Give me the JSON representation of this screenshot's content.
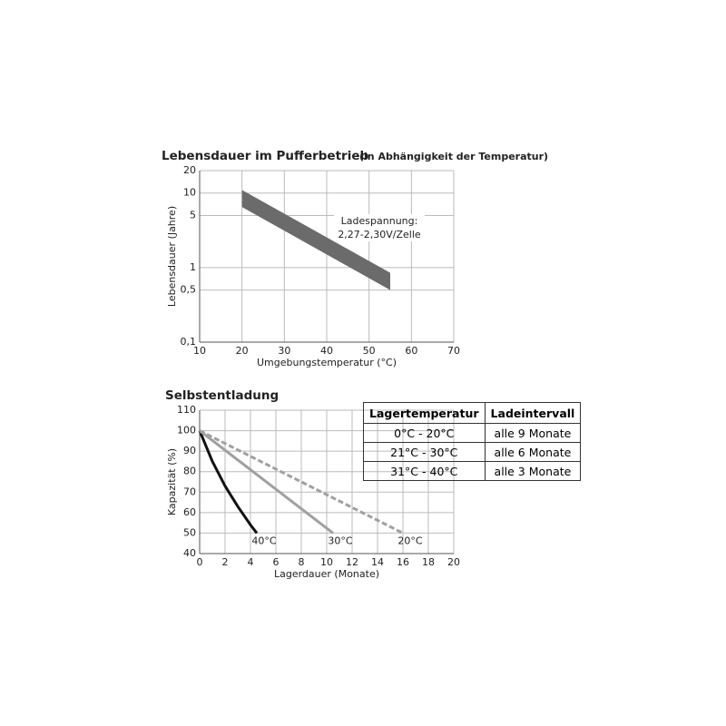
{
  "chart_data": [
    {
      "type": "band",
      "title": "Lebensdauer im Pufferbetrieb",
      "subtitle": "(in Abhängigkeit der Temperatur)",
      "xlabel": "Umgebungstemperatur (°C)",
      "ylabel": "Lebensdauer (Jahre)",
      "annotation": [
        "Ladespannung:",
        "2,27-2,30V/Zelle"
      ],
      "x": [
        20,
        55
      ],
      "upper": [
        11,
        0.85
      ],
      "lower": [
        6.5,
        0.5
      ],
      "color": "#6b6b6b",
      "xlim": [
        10,
        70
      ],
      "xticks": [
        10,
        20,
        30,
        40,
        50,
        60,
        70
      ],
      "ylim": [
        0.1,
        20
      ],
      "yticks": [
        {
          "value": 0.1,
          "label": "0,1"
        },
        {
          "value": 0.5,
          "label": "0,5"
        },
        1,
        5,
        10,
        20
      ],
      "log_y": true,
      "grid": true
    },
    {
      "type": "line",
      "title": "Selbstentladung",
      "xlabel": "Lagerdauer (Monate)",
      "ylabel": "Kapazität (%)",
      "series": [
        {
          "name": "40°C",
          "color": "#111111",
          "dash": false,
          "x": [
            0,
            1,
            2,
            3,
            4,
            4.5
          ],
          "values": [
            100,
            85,
            73,
            63,
            54,
            50
          ]
        },
        {
          "name": "30°C",
          "color": "#a0a0a0",
          "dash": false,
          "x": [
            0,
            10.5
          ],
          "values": [
            100,
            50
          ]
        },
        {
          "name": "20°C",
          "color": "#a0a0a0",
          "dash": true,
          "x": [
            0,
            16
          ],
          "values": [
            100,
            50
          ]
        }
      ],
      "xlim": [
        0,
        20
      ],
      "xticks": [
        0,
        2,
        4,
        6,
        8,
        10,
        12,
        14,
        16,
        18,
        20
      ],
      "ylim": [
        40,
        110
      ],
      "yticks": [
        40,
        50,
        60,
        70,
        80,
        90,
        100,
        110
      ],
      "log_y": false,
      "grid": true
    }
  ],
  "table": {
    "header": [
      "Lagertemperatur",
      "Ladeintervall"
    ],
    "rows": [
      [
        "0°C - 20°C",
        "alle 9 Monate"
      ],
      [
        "21°C - 30°C",
        "alle 6 Monate"
      ],
      [
        "31°C - 40°C",
        "alle 3 Monate"
      ]
    ]
  }
}
